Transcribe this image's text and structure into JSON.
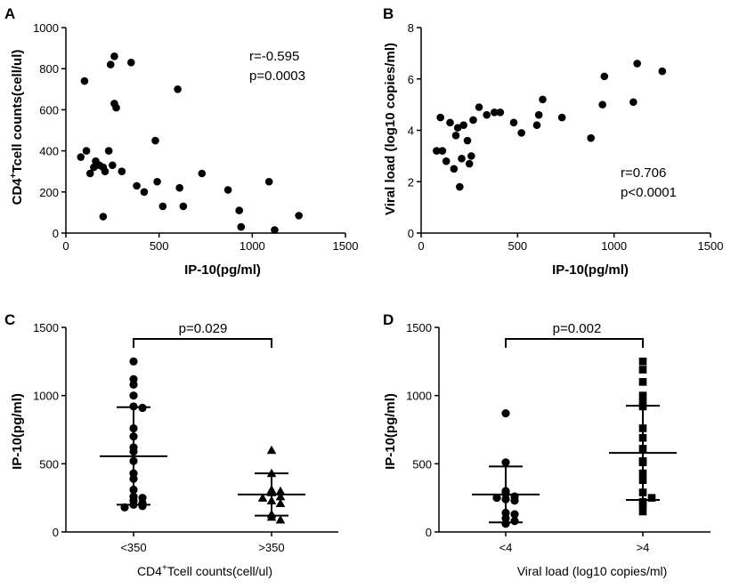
{
  "chart_data": [
    {
      "panel": "A",
      "type": "scatter",
      "xlabel": "IP-10(pg/ml)",
      "ylabel_main": "CD4",
      "ylabel_sup": "+",
      "ylabel_rest": "Tcell counts(cell/ul)",
      "xlim": [
        0,
        1500
      ],
      "ylim": [
        0,
        1000
      ],
      "xticks": [
        0,
        500,
        1000,
        1500
      ],
      "yticks": [
        0,
        200,
        400,
        600,
        800,
        1000
      ],
      "annotation_r": "r=-0.595",
      "annotation_p": "p=0.0003",
      "points": [
        [
          80,
          370
        ],
        [
          100,
          740
        ],
        [
          110,
          400
        ],
        [
          130,
          290
        ],
        [
          150,
          320
        ],
        [
          160,
          350
        ],
        [
          180,
          330
        ],
        [
          200,
          80
        ],
        [
          200,
          320
        ],
        [
          210,
          300
        ],
        [
          230,
          400
        ],
        [
          240,
          820
        ],
        [
          250,
          330
        ],
        [
          260,
          630
        ],
        [
          260,
          860
        ],
        [
          270,
          610
        ],
        [
          300,
          300
        ],
        [
          350,
          830
        ],
        [
          380,
          230
        ],
        [
          420,
          200
        ],
        [
          480,
          450
        ],
        [
          490,
          250
        ],
        [
          520,
          130
        ],
        [
          600,
          700
        ],
        [
          610,
          220
        ],
        [
          630,
          130
        ],
        [
          730,
          290
        ],
        [
          870,
          210
        ],
        [
          930,
          110
        ],
        [
          940,
          30
        ],
        [
          1090,
          250
        ],
        [
          1120,
          15
        ],
        [
          1250,
          85
        ]
      ]
    },
    {
      "panel": "B",
      "type": "scatter",
      "xlabel": "IP-10(pg/ml)",
      "ylabel": "Viral load (log10 copies/ml)",
      "xlim": [
        0,
        1500
      ],
      "ylim": [
        0,
        8
      ],
      "xticks": [
        0,
        500,
        1000,
        1500
      ],
      "yticks": [
        0,
        2,
        4,
        6,
        8
      ],
      "annotation_r": "r=0.706",
      "annotation_p": "p<0.0001",
      "points": [
        [
          80,
          3.2
        ],
        [
          100,
          4.5
        ],
        [
          110,
          3.2
        ],
        [
          130,
          2.8
        ],
        [
          150,
          4.3
        ],
        [
          170,
          2.5
        ],
        [
          180,
          3.8
        ],
        [
          190,
          4.1
        ],
        [
          200,
          1.8
        ],
        [
          210,
          2.9
        ],
        [
          220,
          4.2
        ],
        [
          240,
          3.6
        ],
        [
          250,
          2.7
        ],
        [
          260,
          3.0
        ],
        [
          270,
          4.4
        ],
        [
          300,
          4.9
        ],
        [
          340,
          4.6
        ],
        [
          380,
          4.7
        ],
        [
          410,
          4.7
        ],
        [
          480,
          4.3
        ],
        [
          520,
          3.9
        ],
        [
          600,
          4.2
        ],
        [
          610,
          4.6
        ],
        [
          630,
          5.2
        ],
        [
          730,
          4.5
        ],
        [
          880,
          3.7
        ],
        [
          940,
          5.0
        ],
        [
          950,
          6.1
        ],
        [
          1100,
          5.1
        ],
        [
          1120,
          6.6
        ],
        [
          1250,
          6.3
        ]
      ]
    },
    {
      "panel": "C",
      "type": "scatter",
      "xlabel_main": "CD4",
      "xlabel_sup": "+",
      "xlabel_rest": "Tcell counts(cell/ul)",
      "ylabel": "IP-10(pg/ml)",
      "ylim": [
        0,
        1500
      ],
      "yticks": [
        0,
        500,
        1000,
        1500
      ],
      "categories": [
        "<350",
        ">350"
      ],
      "significance": "p=0.029",
      "groups": [
        {
          "name": "<350",
          "marker": "circle",
          "mean": 555,
          "sd_low": 200,
          "sd_high": 915,
          "values": [
            1250,
            1120,
            1080,
            1000,
            920,
            910,
            760,
            700,
            620,
            590,
            520,
            430,
            390,
            310,
            260,
            250,
            230,
            210,
            200,
            190,
            180
          ]
        },
        {
          "name": ">350",
          "marker": "triangle",
          "mean": 275,
          "sd_low": 120,
          "sd_high": 430,
          "values": [
            600,
            430,
            310,
            300,
            290,
            260,
            250,
            230,
            210,
            130,
            110,
            90
          ]
        }
      ]
    },
    {
      "panel": "D",
      "type": "scatter",
      "xlabel": "Viral load (log10 copies/ml)",
      "ylabel": "IP-10(pg/ml)",
      "ylim": [
        0,
        1500
      ],
      "yticks": [
        0,
        500,
        1000,
        1500
      ],
      "categories": [
        "<4",
        ">4"
      ],
      "significance": "p=0.002",
      "groups": [
        {
          "name": "<4",
          "marker": "circle",
          "mean": 275,
          "sd_low": 70,
          "sd_high": 480,
          "values": [
            870,
            510,
            300,
            280,
            260,
            250,
            240,
            230,
            140,
            130,
            100,
            80,
            60
          ]
        },
        {
          "name": ">4",
          "marker": "square",
          "mean": 580,
          "sd_low": 235,
          "sd_high": 925,
          "values": [
            1250,
            1190,
            1100,
            1000,
            950,
            920,
            760,
            690,
            610,
            520,
            510,
            430,
            380,
            290,
            250,
            220,
            200,
            150
          ]
        }
      ]
    }
  ]
}
